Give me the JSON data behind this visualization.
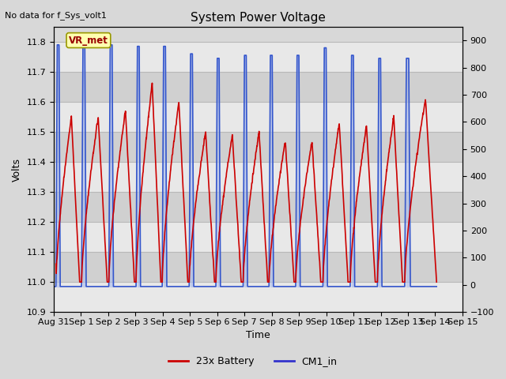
{
  "title": "System Power Voltage",
  "no_data_label": "No data for f_Sys_volt1",
  "xlabel": "Time",
  "ylabel_left": "Volts",
  "ylim_left": [
    10.9,
    11.85
  ],
  "ylim_right": [
    -100,
    950
  ],
  "yticks_left": [
    10.9,
    11.0,
    11.1,
    11.2,
    11.3,
    11.4,
    11.5,
    11.6,
    11.7,
    11.8
  ],
  "yticks_right": [
    -100,
    0,
    100,
    200,
    300,
    400,
    500,
    600,
    700,
    800,
    900
  ],
  "xtick_labels": [
    "Aug 31",
    "Sep 1",
    "Sep 2",
    "Sep 3",
    "Sep 4",
    "Sep 5",
    "Sep 6",
    "Sep 7",
    "Sep 8",
    "Sep 9",
    "Sep 10",
    "Sep 11",
    "Sep 12",
    "Sep 13",
    "Sep 14",
    "Sep 15"
  ],
  "vr_met_label": "VR_met",
  "legend_entries": [
    "23x Battery",
    "CM1_in"
  ],
  "legend_colors": [
    "#cc0000",
    "#3333cc"
  ],
  "bg_color": "#d8d8d8",
  "plot_bg_color": "#d8d8d8",
  "grid_color": "#c0c0c0",
  "battery_color": "#cc0000",
  "cm1_color": "#3355cc",
  "bat_peaks": [
    11.55,
    11.55,
    11.57,
    11.66,
    11.6,
    11.5,
    11.49,
    11.5,
    11.47,
    11.47,
    11.53,
    11.52,
    11.55,
    11.61
  ],
  "cm1_peaks": [
    11.79,
    11.79,
    11.79,
    11.785,
    11.785,
    11.76,
    11.745,
    11.755,
    11.755,
    11.755,
    11.78,
    11.755,
    11.745,
    11.745
  ],
  "cycle_starts": [
    0.08,
    1.02,
    2.02,
    3.02,
    3.98,
    4.97,
    5.95,
    6.95,
    7.9,
    8.88,
    9.88,
    10.88,
    11.88,
    12.88
  ],
  "cycle_ends": [
    0.95,
    1.96,
    2.96,
    3.93,
    4.92,
    5.9,
    6.88,
    7.85,
    8.82,
    9.8,
    10.8,
    11.8,
    12.8,
    14.05
  ]
}
